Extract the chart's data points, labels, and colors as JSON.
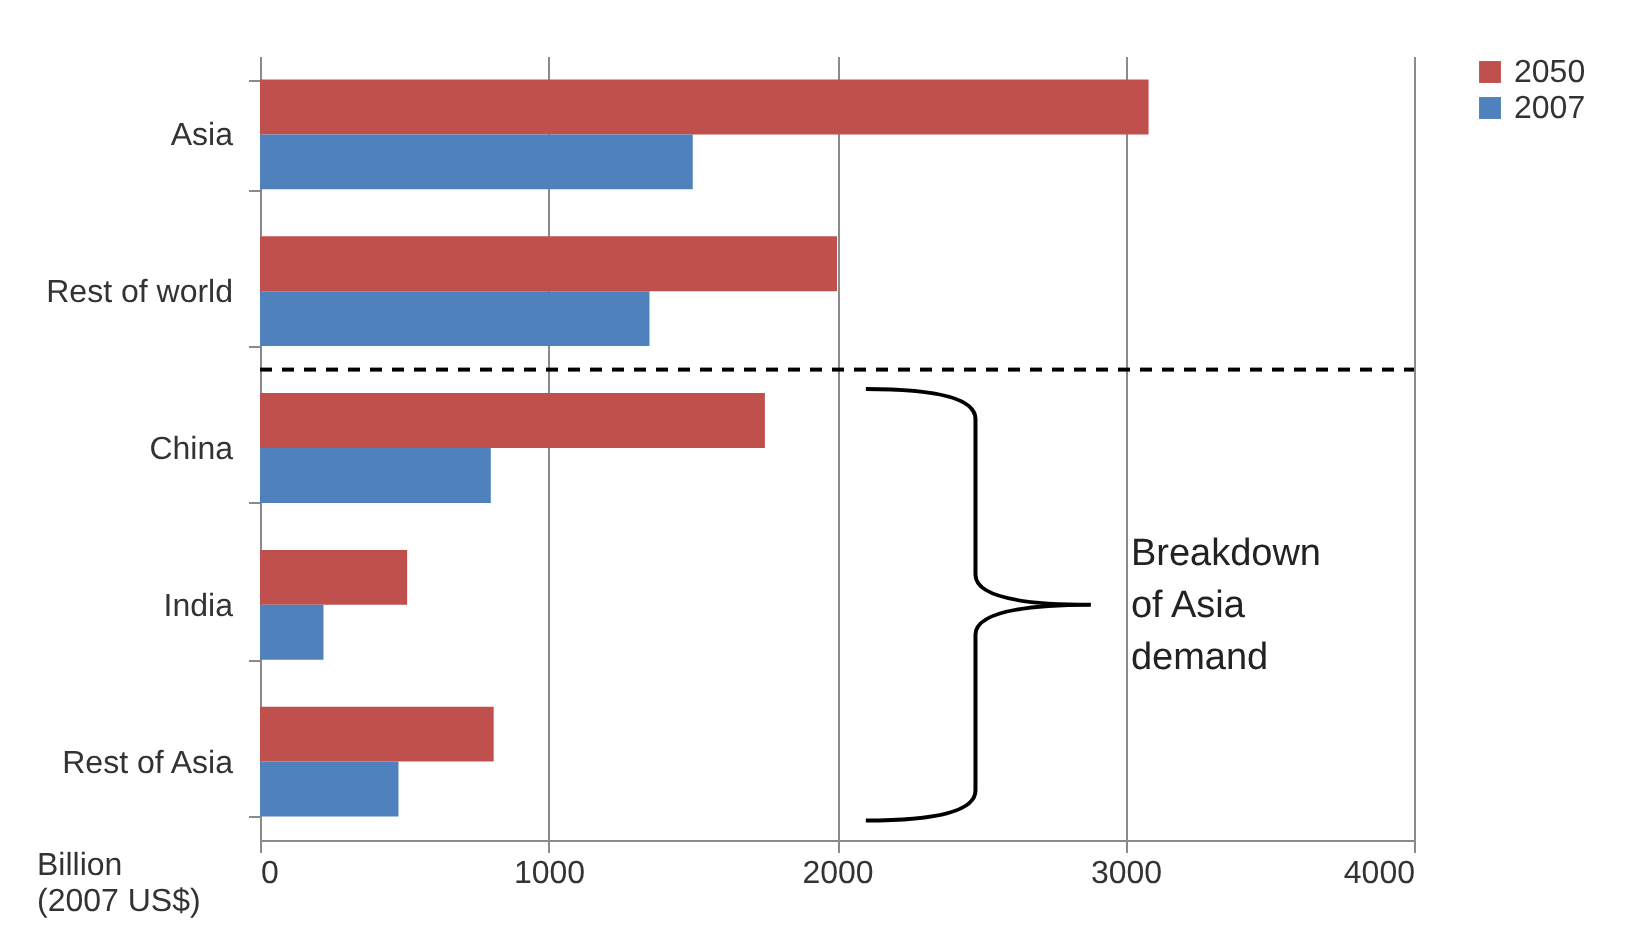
{
  "chart_data": {
    "type": "bar",
    "orientation": "horizontal",
    "xlabel": "Billion (2007 US$)",
    "categories": [
      "Asia",
      "Rest of world",
      "China",
      "India",
      "Rest of Asia"
    ],
    "series": [
      {
        "name": "2050",
        "color": "#c0504d",
        "values": [
          3080,
          2000,
          1750,
          510,
          810
        ]
      },
      {
        "name": "2007",
        "color": "#4f81bd",
        "values": [
          1500,
          1350,
          800,
          220,
          480
        ]
      }
    ],
    "xlim": [
      0,
      4000
    ],
    "xticks": [
      0,
      1000,
      2000,
      3000,
      4000
    ],
    "grid": "x",
    "legend": "right",
    "annotations": [
      "Breakdown of Asia demand"
    ]
  }
}
